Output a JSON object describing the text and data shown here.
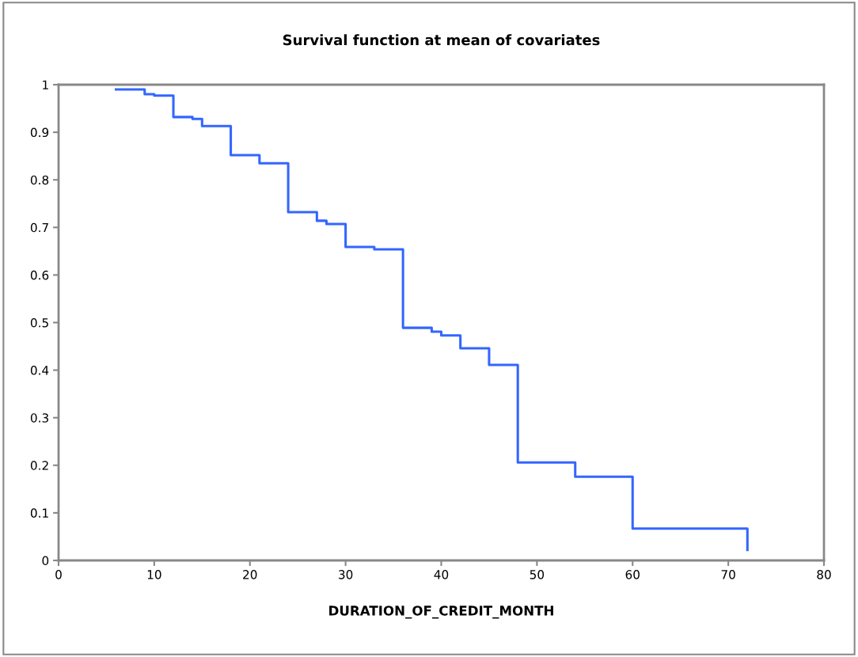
{
  "chart_data": {
    "type": "step",
    "title": "Survival function at mean of covariates",
    "xlabel": "DURATION_OF_CREDIT_MONTH",
    "x": [
      6,
      9,
      10,
      12,
      14,
      15,
      18,
      21,
      24,
      27,
      28,
      30,
      33,
      36,
      39,
      40,
      42,
      45,
      48,
      54,
      60,
      72
    ],
    "series": [
      {
        "color": "#3366ff",
        "values": [
          0.99,
          0.98,
          0.977,
          0.932,
          0.928,
          0.913,
          0.852,
          0.835,
          0.732,
          0.714,
          0.707,
          0.659,
          0.654,
          0.489,
          0.481,
          0.473,
          0.446,
          0.411,
          0.206,
          0.176,
          0.067,
          0.022
        ]
      }
    ],
    "xlim": [
      0,
      80
    ],
    "xticks": [
      0,
      10,
      20,
      30,
      40,
      50,
      60,
      70,
      80
    ],
    "ylim": [
      0,
      1
    ],
    "yticks": [
      0,
      0.1,
      0.2,
      0.3,
      0.4,
      0.5,
      0.6,
      0.7,
      0.8,
      0.9,
      1
    ],
    "grid": false,
    "legend": false
  }
}
